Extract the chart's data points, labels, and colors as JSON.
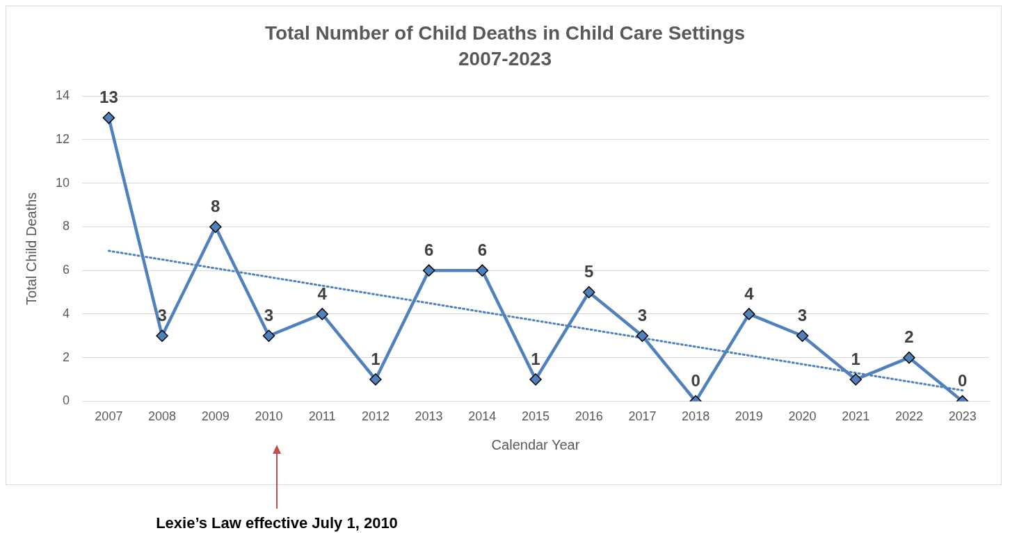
{
  "chart_data": {
    "type": "line",
    "title": "Total Number of Child Deaths in Child Care Settings",
    "subtitle": "2007-2023",
    "xlabel": "Calendar Year",
    "ylabel": "Total Child Deaths",
    "categories": [
      "2007",
      "2008",
      "2009",
      "2010",
      "2011",
      "2012",
      "2013",
      "2014",
      "2015",
      "2016",
      "2017",
      "2018",
      "2019",
      "2020",
      "2021",
      "2022",
      "2023"
    ],
    "series": [
      {
        "color": "#4f81bd",
        "marker": "diamond",
        "values": [
          13,
          3,
          8,
          3,
          4,
          1,
          6,
          6,
          1,
          5,
          3,
          0,
          4,
          3,
          1,
          2,
          0
        ],
        "value_labels": [
          "13",
          "3",
          "8",
          "3",
          "4",
          "1",
          "6",
          "6",
          "1",
          "5",
          "3",
          "0",
          "4",
          "3",
          "1",
          "2",
          "0"
        ]
      },
      {
        "color": "#4f81bd",
        "line_style": "dotted",
        "marker": "none",
        "values": [
          6.9,
          null,
          null,
          null,
          null,
          null,
          null,
          null,
          null,
          null,
          null,
          null,
          null,
          null,
          null,
          null,
          0.5
        ]
      }
    ],
    "ylim": [
      0,
      14
    ],
    "yticks": [
      0,
      2,
      4,
      6,
      8,
      10,
      12,
      14
    ],
    "grid": "y",
    "legend": false,
    "annotations": [
      "Lexie’s Law effective July 1, 2010"
    ]
  }
}
